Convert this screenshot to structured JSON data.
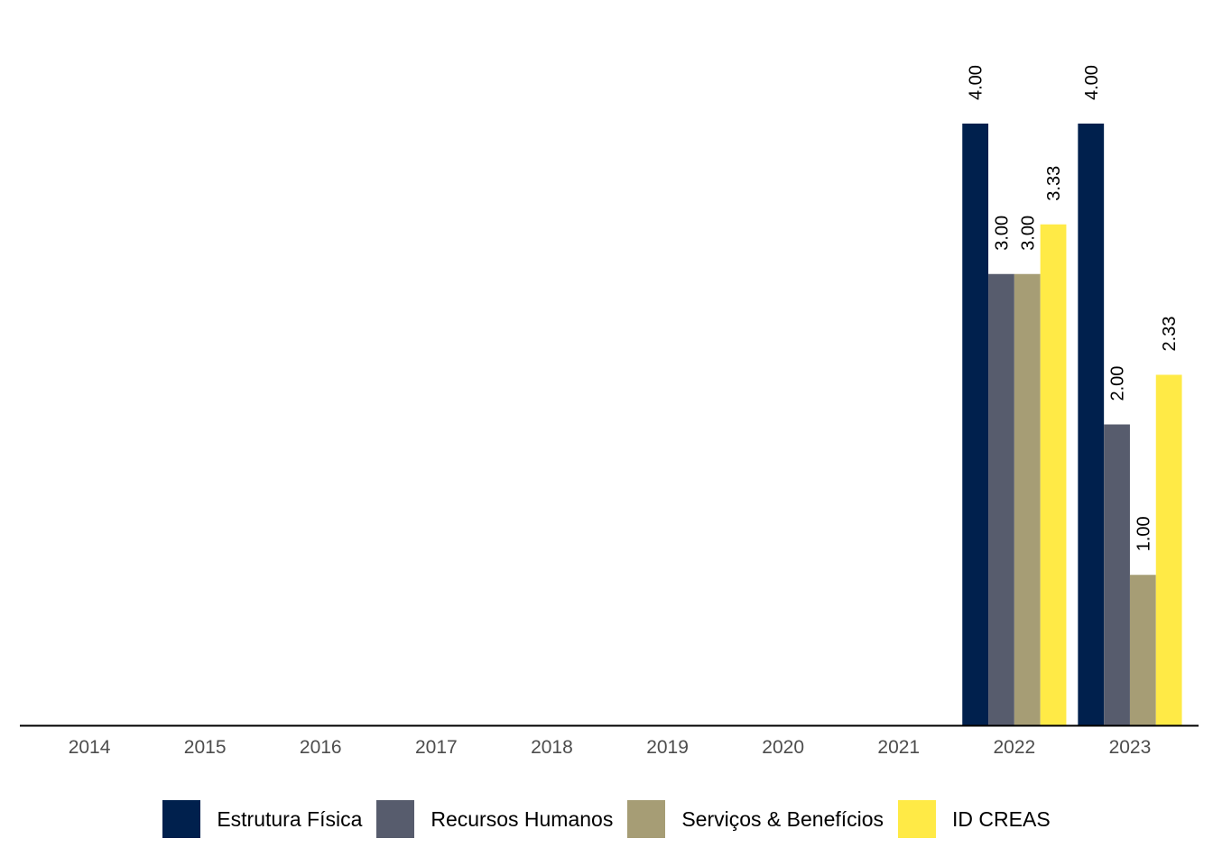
{
  "chart_data": {
    "type": "bar",
    "categories": [
      "2014",
      "2015",
      "2016",
      "2017",
      "2018",
      "2019",
      "2020",
      "2021",
      "2022",
      "2023"
    ],
    "series": [
      {
        "name": "Estrutura Física",
        "color": "#00204d",
        "values": [
          null,
          null,
          null,
          null,
          null,
          null,
          null,
          null,
          4.0,
          4.0
        ],
        "labels": [
          "",
          "",
          "",
          "",
          "",
          "",
          "",
          "",
          "4.00",
          "4.00"
        ]
      },
      {
        "name": "Recursos Humanos",
        "color": "#575c6d",
        "values": [
          null,
          null,
          null,
          null,
          null,
          null,
          null,
          null,
          3.0,
          2.0
        ],
        "labels": [
          "",
          "",
          "",
          "",
          "",
          "",
          "",
          "",
          "3.00",
          "2.00"
        ]
      },
      {
        "name": "Serviços & Benefícios",
        "color": "#a69d75",
        "values": [
          null,
          null,
          null,
          null,
          null,
          null,
          null,
          null,
          3.0,
          1.0
        ],
        "labels": [
          "",
          "",
          "",
          "",
          "",
          "",
          "",
          "",
          "3.00",
          "1.00"
        ]
      },
      {
        "name": "ID CREAS",
        "color": "#ffea46",
        "values": [
          null,
          null,
          null,
          null,
          null,
          null,
          null,
          null,
          3.33,
          2.33
        ],
        "labels": [
          "",
          "",
          "",
          "",
          "",
          "",
          "",
          "",
          "3.33",
          "2.33"
        ]
      }
    ],
    "ylim": [
      0,
      4.0
    ],
    "xlabel": "",
    "ylabel": "",
    "grid": false,
    "legend_position": "bottom"
  }
}
